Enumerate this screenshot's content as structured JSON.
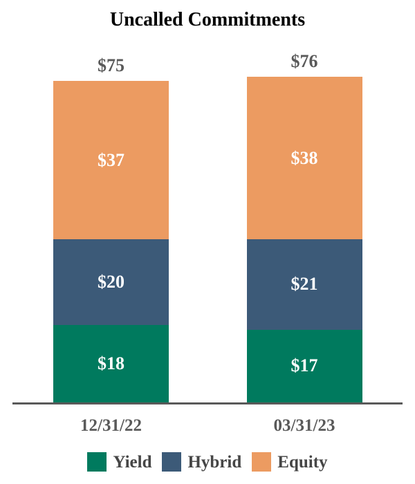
{
  "chart_data": {
    "type": "bar",
    "stacked": true,
    "title": "Uncalled Commitments",
    "categories": [
      "12/31/22",
      "03/31/23"
    ],
    "series": [
      {
        "name": "Yield",
        "color": "#007A5E",
        "values": [
          18,
          17
        ],
        "labels": [
          "$18",
          "$17"
        ]
      },
      {
        "name": "Hybrid",
        "color": "#3C5A78",
        "values": [
          20,
          21
        ],
        "labels": [
          "$20",
          "$21"
        ]
      },
      {
        "name": "Equity",
        "color": "#EC9B61",
        "values": [
          37,
          38
        ],
        "labels": [
          "$37",
          "$38"
        ]
      }
    ],
    "totals": [
      75,
      76
    ],
    "total_labels": [
      "$75",
      "$76"
    ],
    "value_prefix": "$",
    "xlabel": "",
    "ylabel": "",
    "legend_position": "bottom",
    "grid": false,
    "colors": {
      "title_text": "#000000",
      "total_label_text": "#595959",
      "category_label_text": "#595959",
      "segment_value_text": "#ffffff",
      "legend_text": "#454545",
      "axis_line": "#595959",
      "background": "#ffffff"
    }
  }
}
